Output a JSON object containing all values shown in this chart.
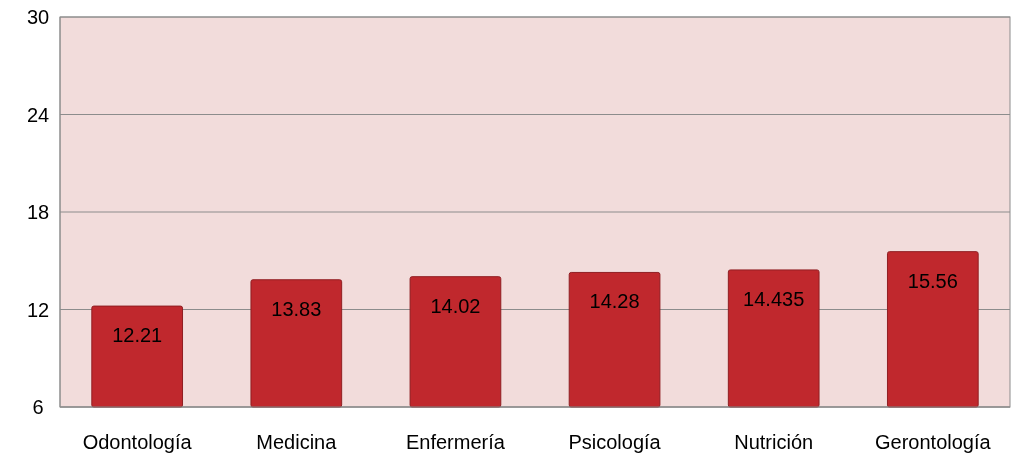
{
  "chart_data": {
    "type": "bar",
    "categories": [
      "Odontología",
      "Medicina",
      "Enfermería",
      "Psicología",
      "Nutrición",
      "Gerontología"
    ],
    "values": [
      12.21,
      13.83,
      14.02,
      14.28,
      14.435,
      15.56
    ],
    "color": "#c0282d",
    "ylim": [
      6,
      30
    ],
    "yticks": [
      6,
      12,
      18,
      24,
      30
    ],
    "grid": "y",
    "data_labels": true
  }
}
